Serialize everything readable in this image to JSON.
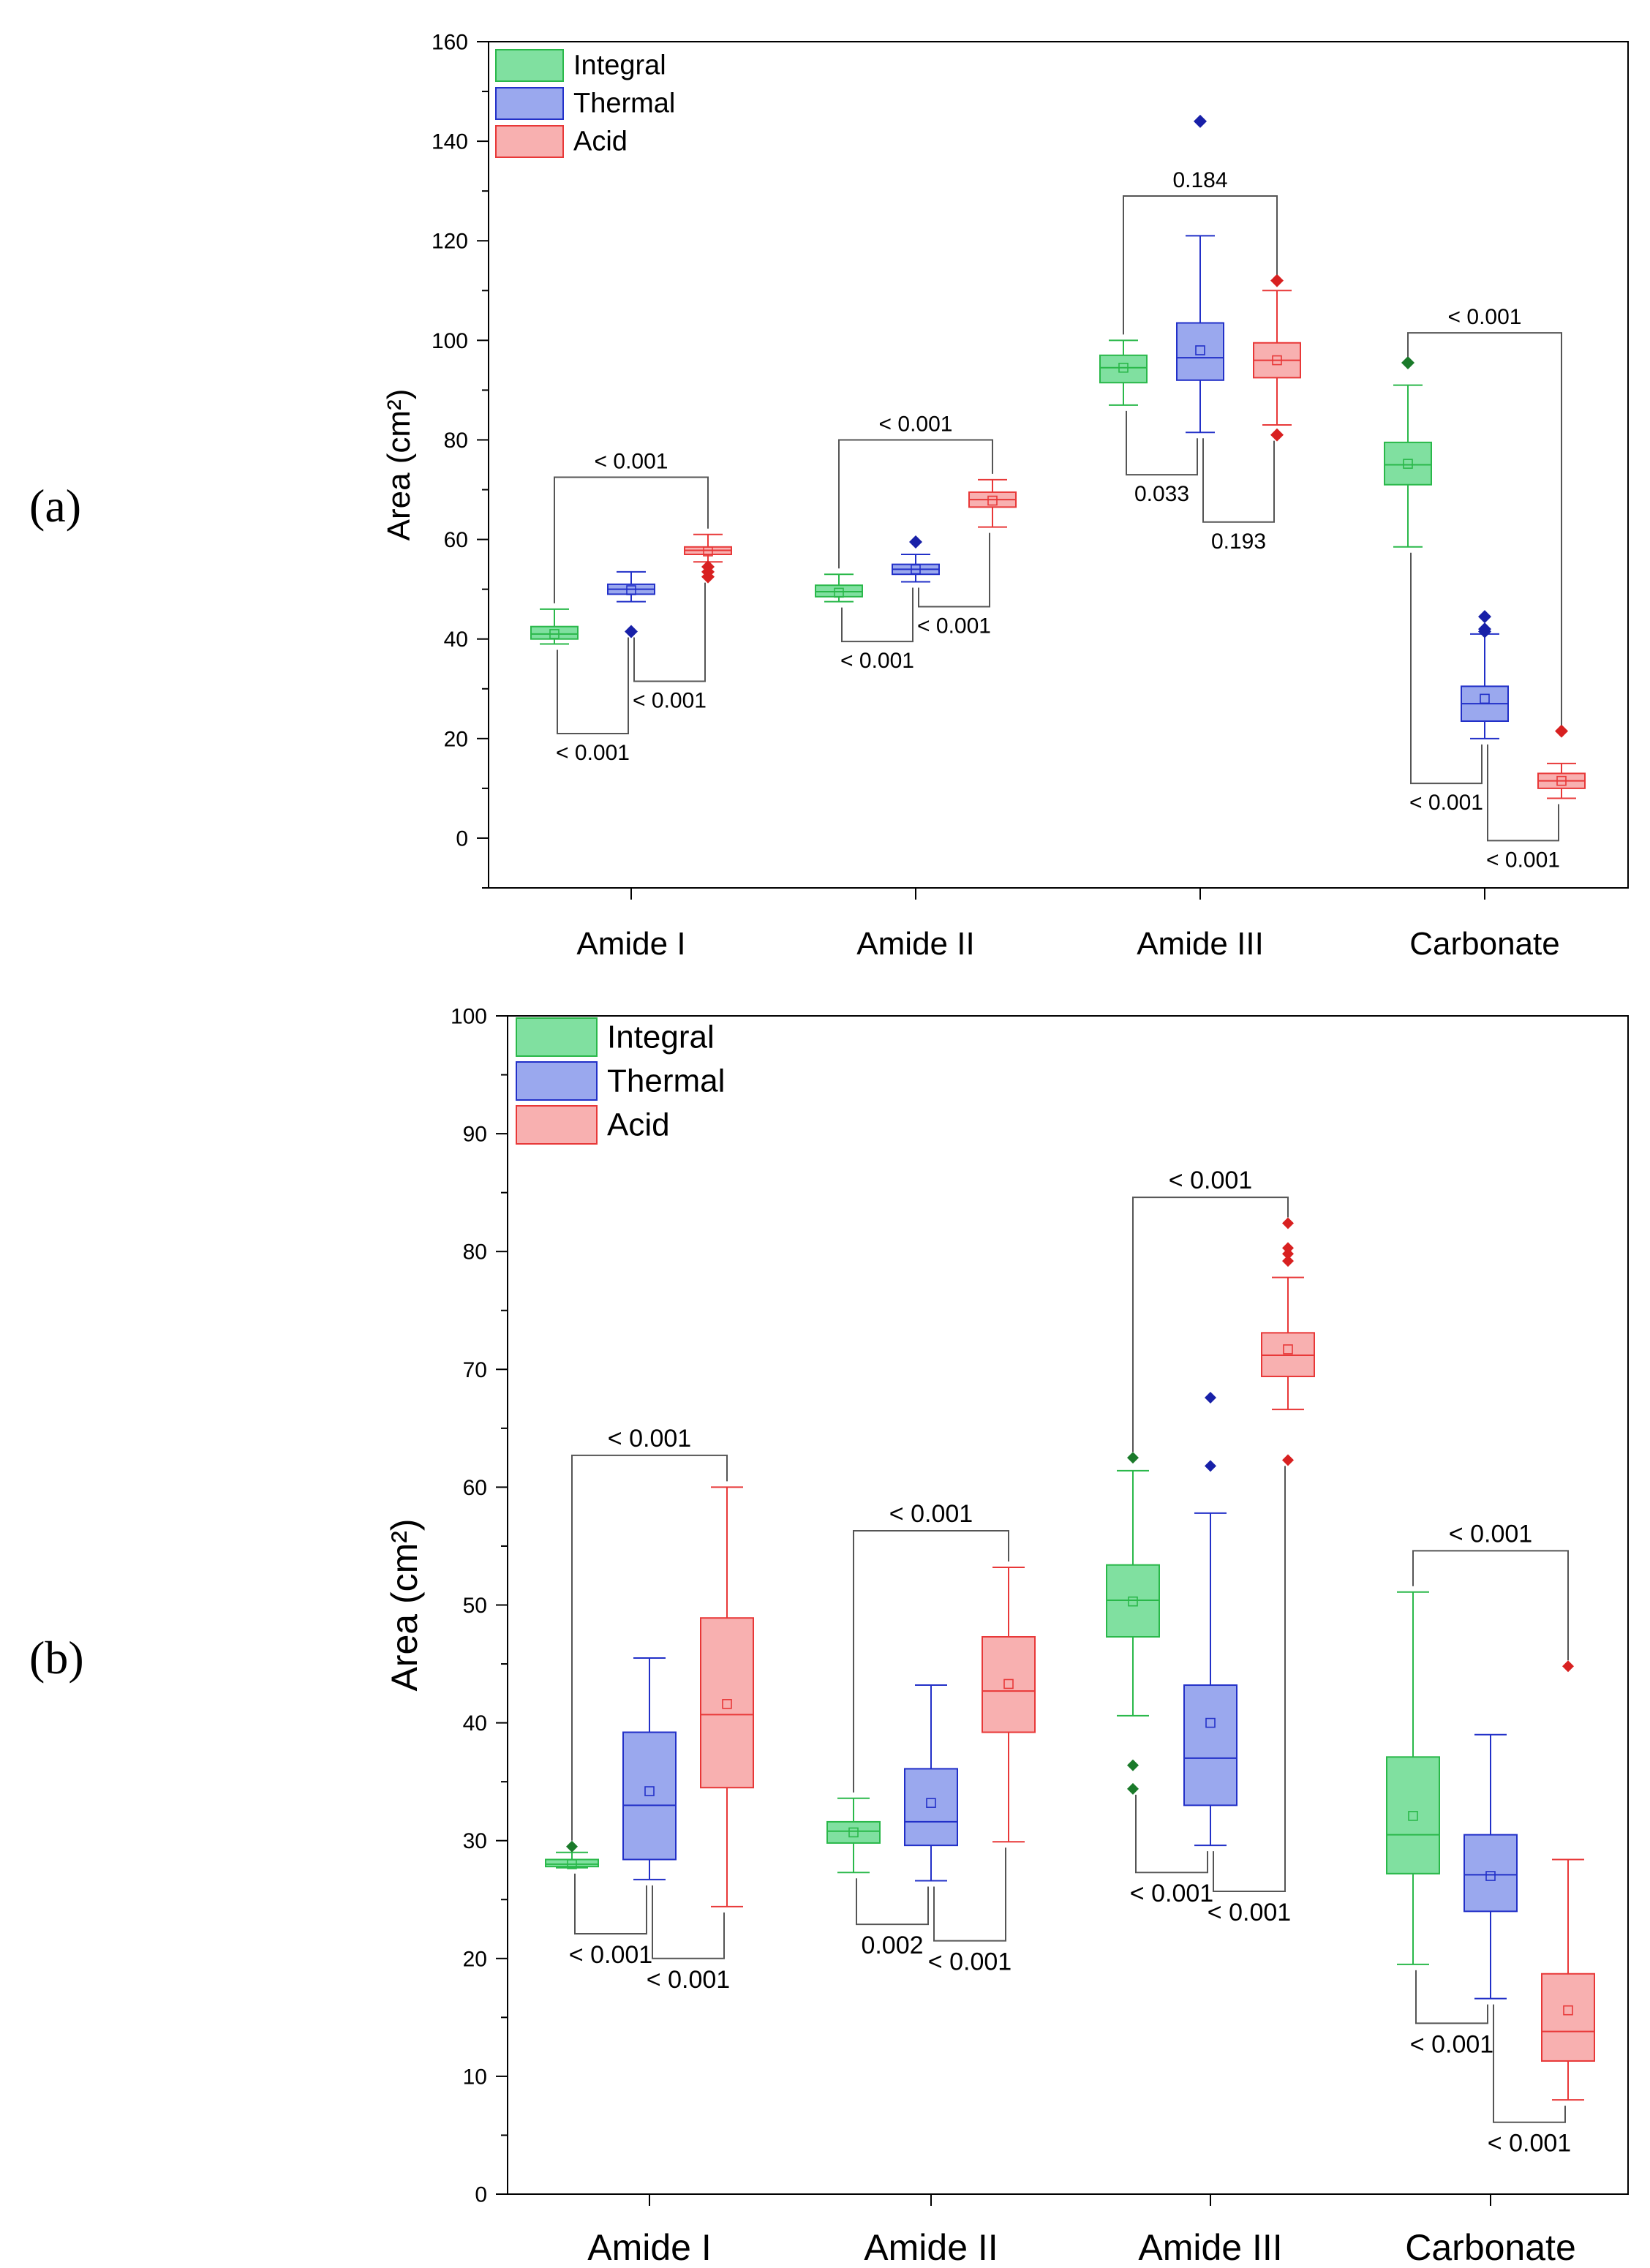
{
  "figure": {
    "panel_a_label": "(a)",
    "panel_b_label": "(b)"
  },
  "colors": {
    "integral": {
      "stroke": "#2ab84a",
      "fill": "#80e0a0",
      "dot": "#1a7a2a"
    },
    "thermal": {
      "stroke": "#2230c8",
      "fill": "#9aa8ee",
      "dot": "#1820a8"
    },
    "acid": {
      "stroke": "#e83838",
      "fill": "#f8b0b0",
      "dot": "#d82020"
    }
  },
  "chart_data": [
    {
      "id": "a",
      "type": "box",
      "title": "",
      "ylabel": "Area (cm²)",
      "ylim": [
        -10,
        160
      ],
      "yticks": [
        0,
        20,
        40,
        60,
        80,
        100,
        120,
        140,
        160
      ],
      "categories": [
        "Amide I",
        "Amide II",
        "Amide III",
        "Carbonate"
      ],
      "legend": {
        "placement": "top-left",
        "entries": [
          "Integral",
          "Thermal",
          "Acid"
        ]
      },
      "series": [
        {
          "name": "Integral",
          "key": "integral",
          "boxes": [
            {
              "wl": 39,
              "q1": 40,
              "med": 41,
              "q3": 42.5,
              "wh": 46,
              "mean": 41,
              "outliers": []
            },
            {
              "wl": 47.5,
              "q1": 48.5,
              "med": 49.5,
              "q3": 50.8,
              "wh": 53,
              "mean": 49.3,
              "outliers": []
            },
            {
              "wl": 87,
              "q1": 91.5,
              "med": 94.5,
              "q3": 97,
              "wh": 100,
              "mean": 94.5,
              "outliers": []
            },
            {
              "wl": 58.5,
              "q1": 71,
              "med": 75,
              "q3": 79.5,
              "wh": 91,
              "mean": 75.2,
              "outliers": [
                95.5
              ]
            }
          ]
        },
        {
          "name": "Thermal",
          "key": "thermal",
          "boxes": [
            {
              "wl": 47.5,
              "q1": 49,
              "med": 50,
              "q3": 51,
              "wh": 53.5,
              "mean": 49.8,
              "outliers": [
                41.5
              ]
            },
            {
              "wl": 51.5,
              "q1": 53,
              "med": 54,
              "q3": 55,
              "wh": 57,
              "mean": 54,
              "outliers": [
                59.5
              ]
            },
            {
              "wl": 81.5,
              "q1": 92,
              "med": 96.5,
              "q3": 103.5,
              "wh": 121,
              "mean": 98,
              "outliers": [
                144
              ]
            },
            {
              "wl": 20,
              "q1": 23.5,
              "med": 27,
              "q3": 30.5,
              "wh": 41,
              "mean": 28,
              "outliers": [
                41.5,
                42,
                44.5
              ]
            }
          ]
        },
        {
          "name": "Acid",
          "key": "acid",
          "boxes": [
            {
              "wl": 55.5,
              "q1": 57,
              "med": 57.8,
              "q3": 58.5,
              "wh": 61,
              "mean": 57.6,
              "outliers": [
                52.5,
                53.5,
                54.5
              ]
            },
            {
              "wl": 62.5,
              "q1": 66.5,
              "med": 68,
              "q3": 69.5,
              "wh": 72,
              "mean": 67.8,
              "outliers": []
            },
            {
              "wl": 83,
              "q1": 92.5,
              "med": 96,
              "q3": 99.5,
              "wh": 110,
              "mean": 96,
              "outliers": [
                81,
                112
              ]
            },
            {
              "wl": 8,
              "q1": 10,
              "med": 11.5,
              "q3": 13,
              "wh": 15,
              "mean": 11.5,
              "outliers": [
                21.5
              ]
            }
          ]
        }
      ],
      "annotations": [
        {
          "text": "< 0.001",
          "cat": 0,
          "from": 0,
          "to": 2,
          "y": 72.5,
          "dir": "top"
        },
        {
          "text": "< 0.001",
          "cat": 0,
          "from": 0,
          "to": 1,
          "y": 21,
          "dir": "bottom"
        },
        {
          "text": "< 0.001",
          "cat": 0,
          "from": 1,
          "to": 2,
          "y": 31.5,
          "dir": "bottom"
        },
        {
          "text": "< 0.001",
          "cat": 1,
          "from": 0,
          "to": 2,
          "y": 80,
          "dir": "top"
        },
        {
          "text": "< 0.001",
          "cat": 1,
          "from": 0,
          "to": 1,
          "y": 39.5,
          "dir": "bottom"
        },
        {
          "text": "< 0.001",
          "cat": 1,
          "from": 1,
          "to": 2,
          "y": 46.5,
          "dir": "bottom"
        },
        {
          "text": "0.184",
          "cat": 2,
          "from": 0,
          "to": 2,
          "y": 129,
          "dir": "top"
        },
        {
          "text": "0.033",
          "cat": 2,
          "from": 0,
          "to": 1,
          "y": 73,
          "dir": "bottom"
        },
        {
          "text": "0.193",
          "cat": 2,
          "from": 1,
          "to": 2,
          "y": 63.5,
          "dir": "bottom"
        },
        {
          "text": "< 0.001",
          "cat": 3,
          "from": 0,
          "to": 2,
          "y": 101.5,
          "dir": "top"
        },
        {
          "text": "< 0.001",
          "cat": 3,
          "from": 0,
          "to": 1,
          "y": 11,
          "dir": "bottom"
        },
        {
          "text": "< 0.001",
          "cat": 3,
          "from": 1,
          "to": 2,
          "y": -0.5,
          "dir": "bottom"
        }
      ]
    },
    {
      "id": "b",
      "type": "box",
      "title": "",
      "ylabel": "Area (cm²)",
      "ylim": [
        0,
        100
      ],
      "yticks": [
        0,
        10,
        20,
        30,
        40,
        50,
        60,
        70,
        80,
        90,
        100
      ],
      "categories": [
        "Amide I",
        "Amide II",
        "Amide III",
        "Carbonate"
      ],
      "legend": {
        "placement": "top-left",
        "entries": [
          "Integral",
          "Thermal",
          "Acid"
        ]
      },
      "series": [
        {
          "name": "Integral",
          "key": "integral",
          "boxes": [
            {
              "wl": 27.7,
              "q1": 27.8,
              "med": 28,
              "q3": 28.4,
              "wh": 29,
              "mean": 28,
              "outliers": [
                29.5
              ]
            },
            {
              "wl": 27.3,
              "q1": 29.8,
              "med": 30.8,
              "q3": 31.6,
              "wh": 33.6,
              "mean": 30.7,
              "outliers": []
            },
            {
              "wl": 40.6,
              "q1": 47.3,
              "med": 50.4,
              "q3": 53.4,
              "wh": 61.4,
              "mean": 50.3,
              "outliers": [
                34.4,
                36.4,
                62.5
              ]
            },
            {
              "wl": 19.5,
              "q1": 27.2,
              "med": 30.5,
              "q3": 37.1,
              "wh": 51.1,
              "mean": 32.1,
              "outliers": []
            }
          ]
        },
        {
          "name": "Thermal",
          "key": "thermal",
          "boxes": [
            {
              "wl": 26.7,
              "q1": 28.4,
              "med": 33,
              "q3": 39.2,
              "wh": 45.5,
              "mean": 34.2,
              "outliers": []
            },
            {
              "wl": 26.6,
              "q1": 29.6,
              "med": 31.6,
              "q3": 36.1,
              "wh": 43.2,
              "mean": 33.2,
              "outliers": []
            },
            {
              "wl": 29.6,
              "q1": 33,
              "med": 37,
              "q3": 43.2,
              "wh": 57.8,
              "mean": 40,
              "outliers": [
                61.8,
                67.6
              ]
            },
            {
              "wl": 16.6,
              "q1": 24,
              "med": 27.1,
              "q3": 30.5,
              "wh": 39,
              "mean": 27,
              "outliers": []
            }
          ]
        },
        {
          "name": "Acid",
          "key": "acid",
          "boxes": [
            {
              "wl": 24.4,
              "q1": 34.5,
              "med": 40.7,
              "q3": 48.9,
              "wh": 60,
              "mean": 41.6,
              "outliers": []
            },
            {
              "wl": 29.9,
              "q1": 39.2,
              "med": 42.7,
              "q3": 47.3,
              "wh": 53.2,
              "mean": 43.3,
              "outliers": []
            },
            {
              "wl": 66.6,
              "q1": 69.4,
              "med": 71.2,
              "q3": 73.1,
              "wh": 77.8,
              "mean": 71.7,
              "outliers": [
                62.3,
                79.2,
                79.8,
                80.3,
                82.4
              ]
            },
            {
              "wl": 8,
              "q1": 11.3,
              "med": 13.8,
              "q3": 18.7,
              "wh": 28.4,
              "mean": 15.6,
              "outliers": [
                44.8
              ]
            }
          ]
        }
      ],
      "annotations": [
        {
          "text": "< 0.001",
          "cat": 0,
          "from": 0,
          "to": 2,
          "y": 62.7,
          "dir": "top"
        },
        {
          "text": "< 0.001",
          "cat": 0,
          "from": 0,
          "to": 1,
          "y": 22.1,
          "dir": "bottom"
        },
        {
          "text": "< 0.001",
          "cat": 0,
          "from": 1,
          "to": 2,
          "y": 20,
          "dir": "bottom"
        },
        {
          "text": "< 0.001",
          "cat": 1,
          "from": 0,
          "to": 2,
          "y": 56.3,
          "dir": "top"
        },
        {
          "text": "0.002",
          "cat": 1,
          "from": 0,
          "to": 1,
          "y": 22.9,
          "dir": "bottom"
        },
        {
          "text": "< 0.001",
          "cat": 1,
          "from": 1,
          "to": 2,
          "y": 21.5,
          "dir": "bottom"
        },
        {
          "text": "< 0.001",
          "cat": 2,
          "from": 0,
          "to": 2,
          "y": 84.6,
          "dir": "top"
        },
        {
          "text": "< 0.001",
          "cat": 2,
          "from": 0,
          "to": 1,
          "y": 27.3,
          "dir": "bottom"
        },
        {
          "text": "< 0.001",
          "cat": 2,
          "from": 1,
          "to": 2,
          "y": 25.7,
          "dir": "bottom"
        },
        {
          "text": "< 0.001",
          "cat": 3,
          "from": 0,
          "to": 2,
          "y": 54.6,
          "dir": "top"
        },
        {
          "text": "< 0.001",
          "cat": 3,
          "from": 0,
          "to": 1,
          "y": 14.5,
          "dir": "bottom"
        },
        {
          "text": "< 0.001",
          "cat": 3,
          "from": 1,
          "to": 2,
          "y": 6.1,
          "dir": "bottom"
        }
      ]
    }
  ]
}
